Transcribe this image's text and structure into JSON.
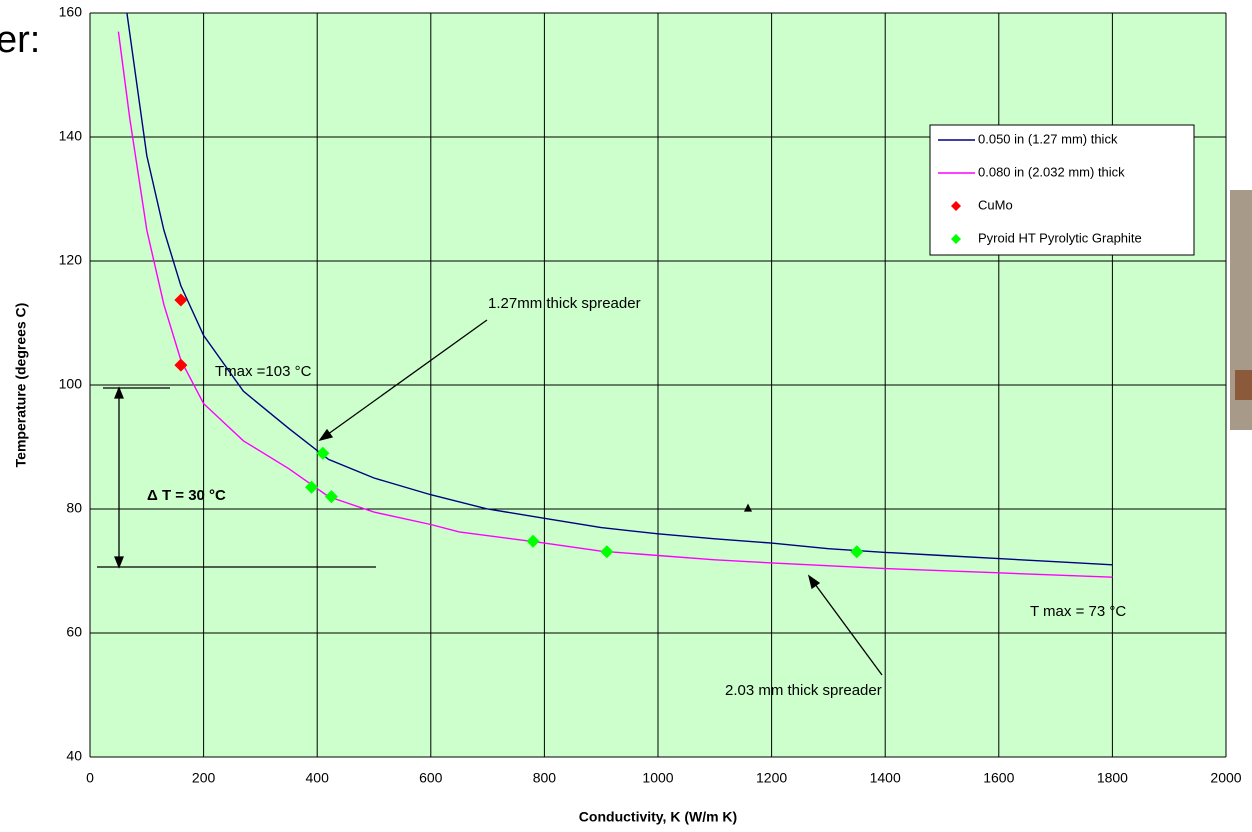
{
  "chart_data": {
    "type": "line",
    "fragment": "er:",
    "xlabel": "Conductivity, K (W/m K)",
    "ylabel": "Temperature (degrees C)",
    "xlim": [
      0,
      2000
    ],
    "ylim": [
      40,
      160
    ],
    "xticks": [
      0,
      200,
      400,
      600,
      800,
      1000,
      1200,
      1400,
      1600,
      1800,
      2000
    ],
    "yticks": [
      40,
      60,
      80,
      100,
      120,
      140,
      160
    ],
    "grid": true,
    "legend": "upper right",
    "series": [
      {
        "name": "0.050 in (1.27 mm) thick",
        "color": "#000080",
        "marker": "line",
        "x": [
          65,
          100,
          130,
          160,
          200,
          270,
          350,
          420,
          500,
          600,
          700,
          800,
          900,
          1000,
          1100,
          1200,
          1300,
          1400,
          1500,
          1600,
          1700,
          1800
        ],
        "values": [
          160,
          137,
          125,
          116,
          108,
          99,
          93,
          88,
          85,
          82.3,
          80,
          78.5,
          77,
          76,
          75.2,
          74.5,
          73.6,
          73,
          72.5,
          72,
          71.5,
          71
        ]
      },
      {
        "name": "0.080 in (2.032 mm) thick",
        "color": "#ff00ff",
        "marker": "line",
        "x": [
          50,
          70,
          100,
          130,
          160,
          200,
          270,
          350,
          420,
          500,
          600,
          650,
          800,
          900,
          1000,
          1100,
          1200,
          1400,
          1600,
          1800
        ],
        "values": [
          157,
          143,
          125,
          113,
          104,
          97,
          91,
          86.5,
          82,
          79.5,
          77.5,
          76.3,
          74.5,
          73.2,
          72.5,
          71.8,
          71.3,
          70.4,
          69.7,
          69
        ]
      },
      {
        "name": "CuMo",
        "color": "#ff0000",
        "marker": "diamond",
        "x": [
          160,
          160
        ],
        "values": [
          113.7,
          103.2
        ]
      },
      {
        "name": "Pyroid HT Pyrolytic Graphite",
        "color": "#00ff00",
        "marker": "diamond",
        "x": [
          410,
          390,
          425,
          780,
          910,
          1350
        ],
        "values": [
          89,
          83.5,
          82,
          74.8,
          73.1,
          73.1
        ]
      }
    ],
    "annotations": [
      "1.27mm thick spreader",
      "Tmax =103 °C",
      "Δ T = 30 °C",
      "T max = 73 °C",
      "2.03 mm thick spreader"
    ]
  }
}
